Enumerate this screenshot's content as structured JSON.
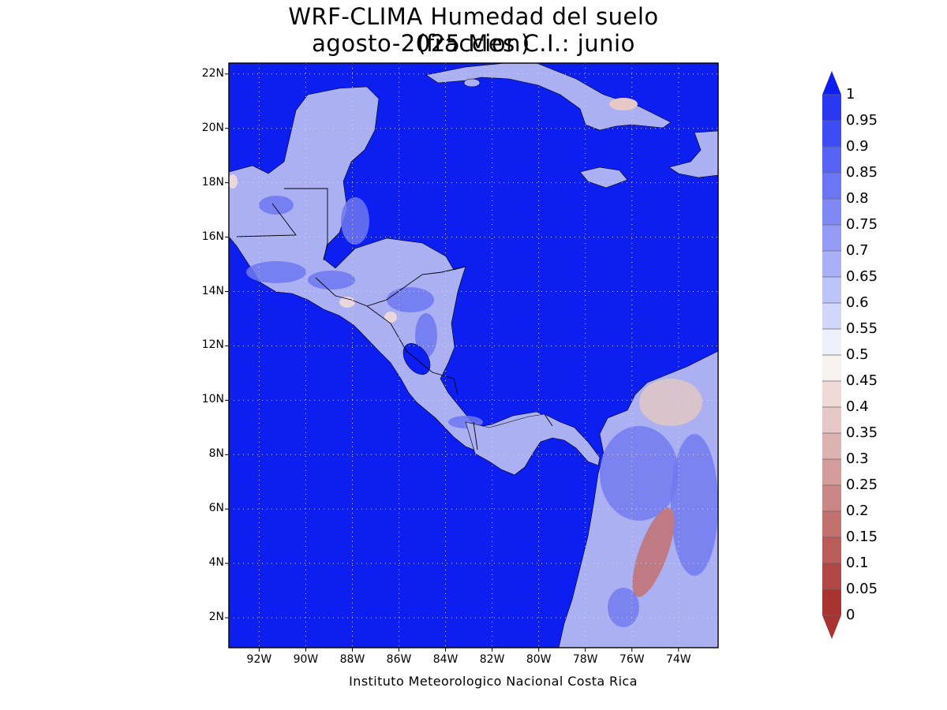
{
  "title": {
    "line1": "WRF-CLIMA Humedad del suelo (fraccion)",
    "line2": "agosto-2025 Mes C.I.: junio"
  },
  "credit": "Instituto Meteorologico Nacional Costa Rica",
  "map": {
    "lon_range": [
      -93.3,
      -72.3
    ],
    "lat_range": [
      0.9,
      22.4
    ],
    "lon_ticks": [
      {
        "value": -92,
        "label": "92W"
      },
      {
        "value": -90,
        "label": "90W"
      },
      {
        "value": -88,
        "label": "88W"
      },
      {
        "value": -86,
        "label": "86W"
      },
      {
        "value": -84,
        "label": "84W"
      },
      {
        "value": -82,
        "label": "82W"
      },
      {
        "value": -80,
        "label": "80W"
      },
      {
        "value": -78,
        "label": "78W"
      },
      {
        "value": -76,
        "label": "76W"
      },
      {
        "value": -74,
        "label": "74W"
      }
    ],
    "lat_ticks": [
      {
        "value": 2,
        "label": "2N"
      },
      {
        "value": 4,
        "label": "4N"
      },
      {
        "value": 6,
        "label": "6N"
      },
      {
        "value": 8,
        "label": "8N"
      },
      {
        "value": 10,
        "label": "10N"
      },
      {
        "value": 12,
        "label": "12N"
      },
      {
        "value": 14,
        "label": "14N"
      },
      {
        "value": 16,
        "label": "16N"
      },
      {
        "value": 18,
        "label": "18N"
      },
      {
        "value": 20,
        "label": "20N"
      },
      {
        "value": 22,
        "label": "22N"
      }
    ],
    "gridlines": "dotted",
    "ocean_value": 1,
    "colors": {
      "ocean": "#0d1ef0",
      "land_wet": "#6f78f0",
      "land_mid": "#aab0f2",
      "land_dry": "#d9c4cc",
      "dry_core": "#c07a84"
    }
  },
  "colorbar": {
    "levels": [
      "1",
      "0.95",
      "0.9",
      "0.85",
      "0.8",
      "0.75",
      "0.7",
      "0.65",
      "0.6",
      "0.55",
      "0.5",
      "0.45",
      "0.4",
      "0.35",
      "0.3",
      "0.25",
      "0.2",
      "0.15",
      "0.1",
      "0.05",
      "0"
    ],
    "colors": [
      "#0d1ef0",
      "#2a38f2",
      "#3e4cf3",
      "#5663f4",
      "#6b76f5",
      "#7f89f6",
      "#949cf7",
      "#a9b0f9",
      "#bec3fa",
      "#d3d6fb",
      "#eef0fc",
      "#f7f1ef",
      "#efdad8",
      "#e6c8c6",
      "#ddb3b1",
      "#d49d9b",
      "#cb8785",
      "#c2716f",
      "#b95c5a",
      "#b04744",
      "#a83330"
    ],
    "over_color": "#0d1ef0",
    "under_color": "#a83330"
  }
}
